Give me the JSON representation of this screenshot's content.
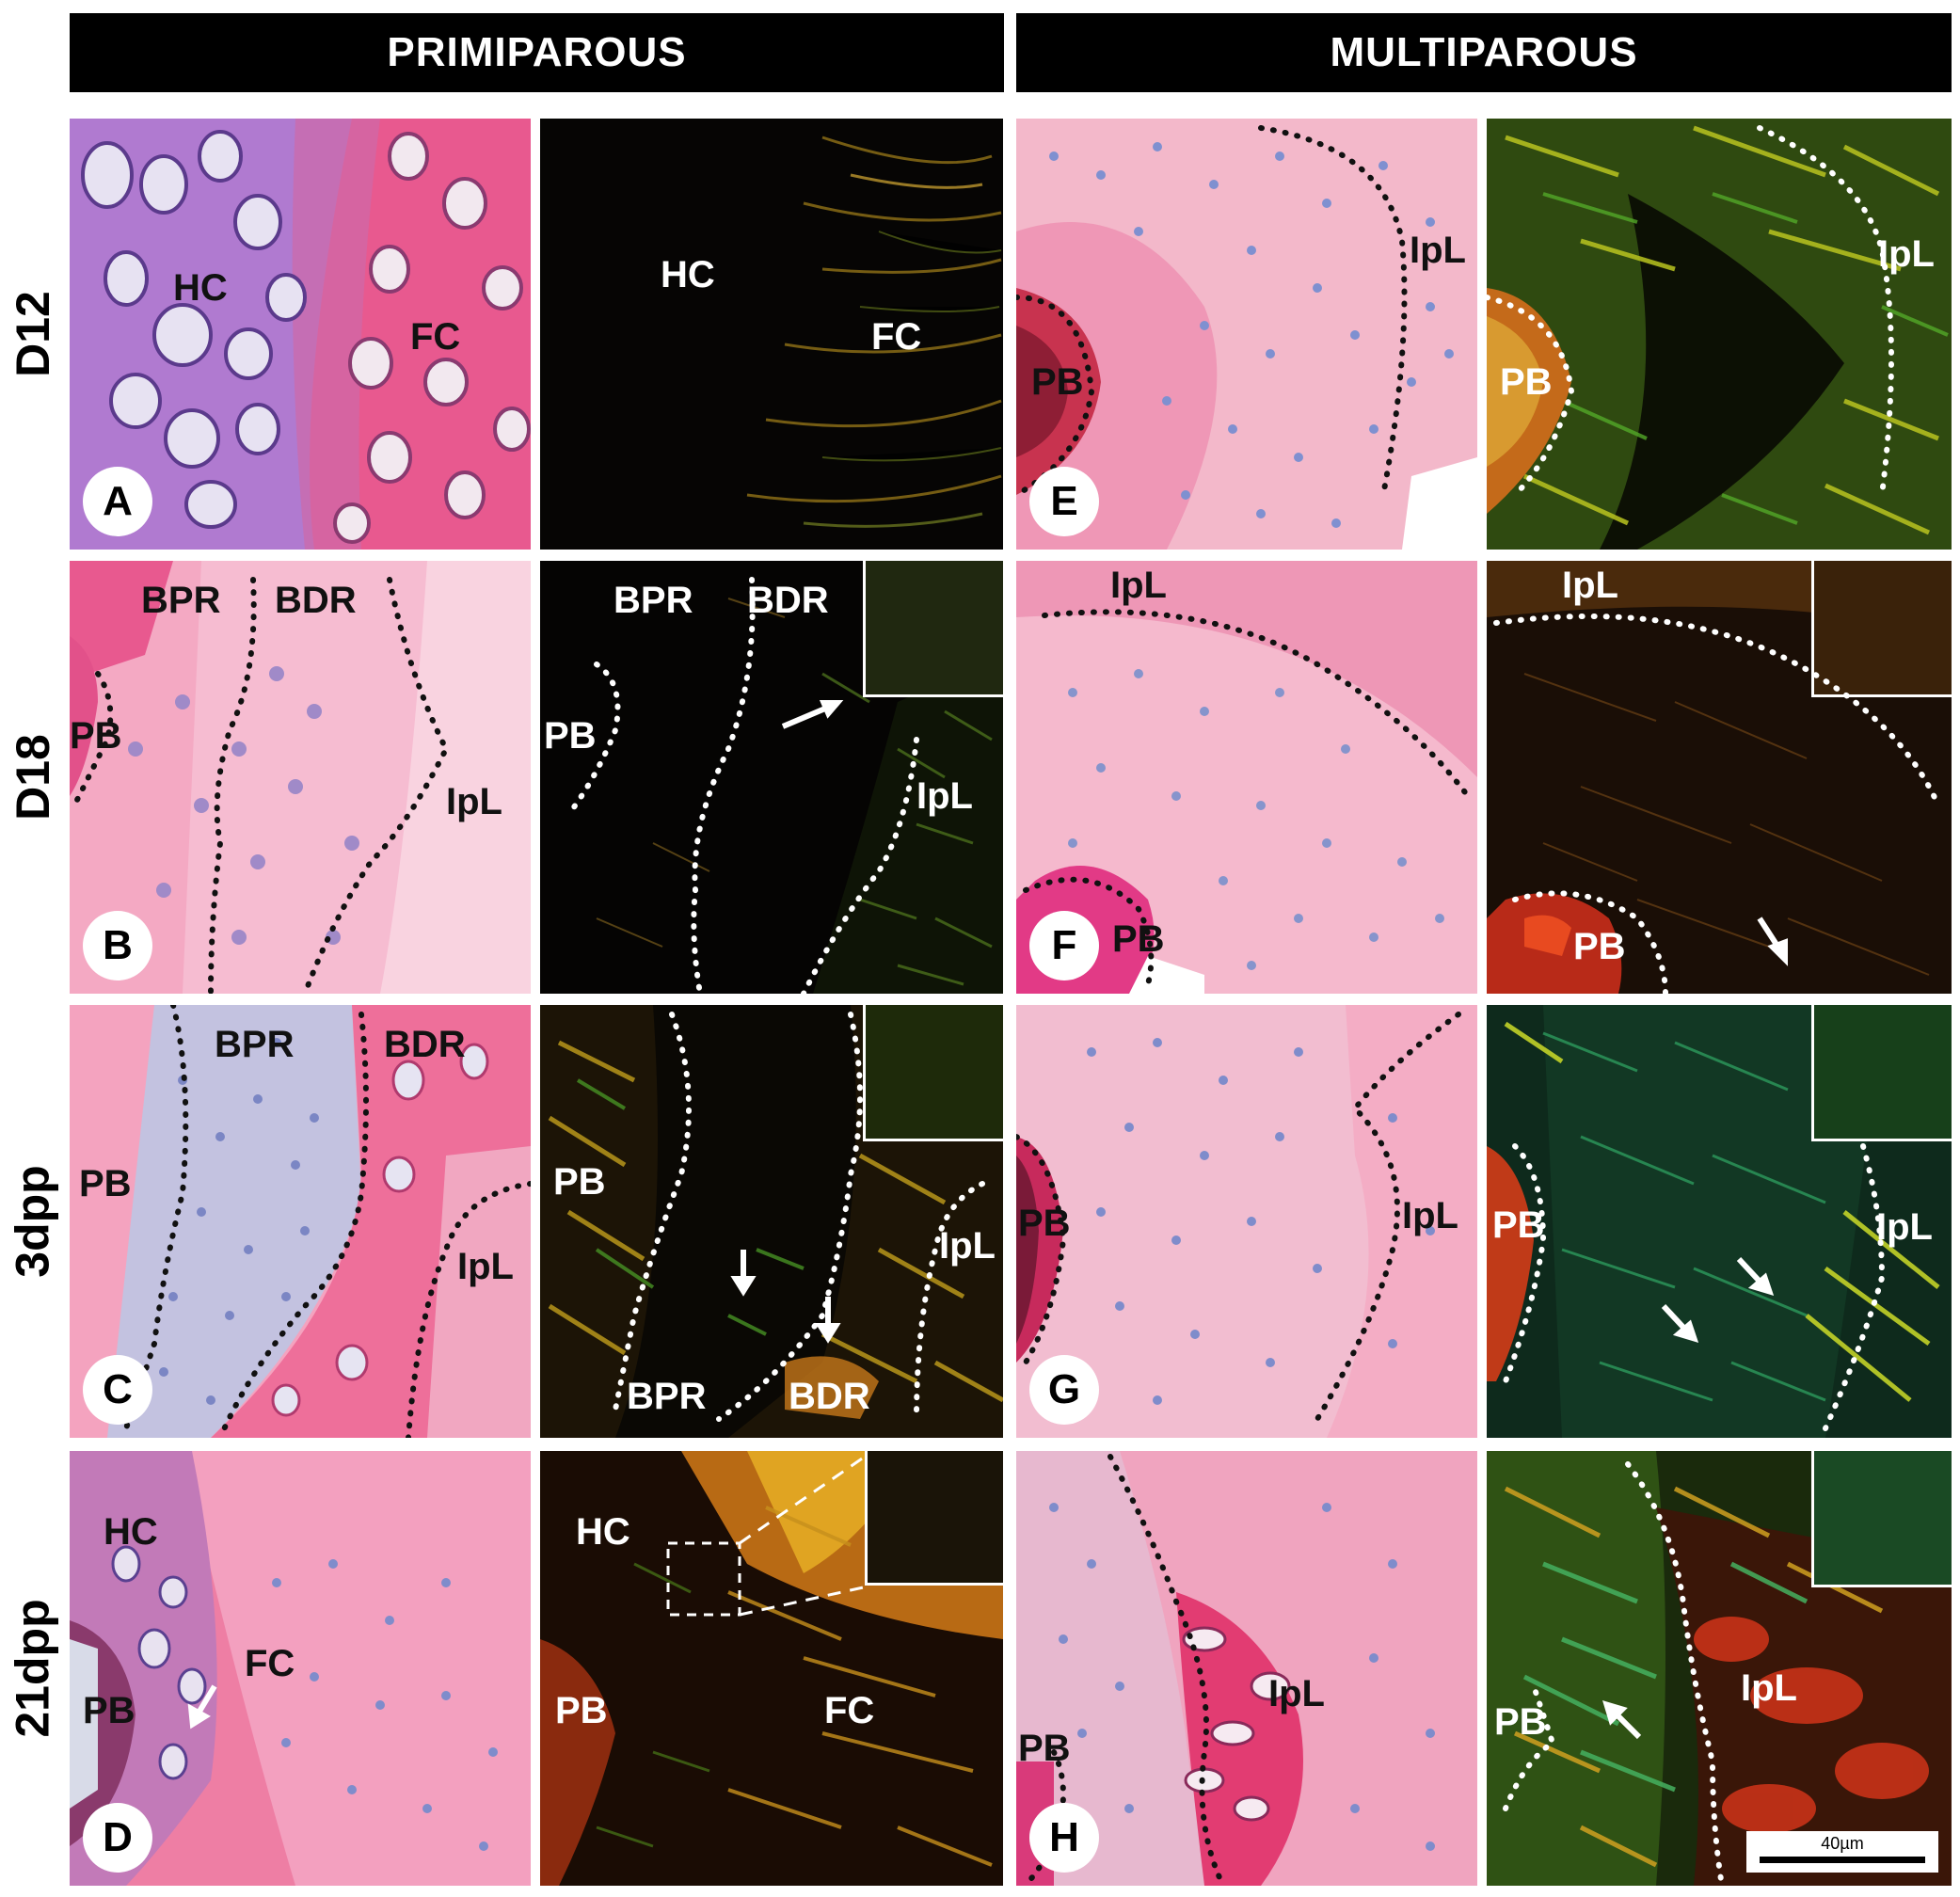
{
  "headers": {
    "left": "PRIMIPAROUS",
    "right": "MULTIPAROUS"
  },
  "rows": [
    "D12",
    "D18",
    "3dpp",
    "21dpp"
  ],
  "colors": {
    "he_pink": "#f2a7c0",
    "he_deep_pink": "#e6427d",
    "he_purple": "#8a5bbd",
    "nuclei_blue": "#7a86c8",
    "polarized_bg": "#0a0804",
    "fiber_yellow": "#c9b020",
    "fiber_green": "#3f9a2a",
    "fiber_red": "#c8321e"
  },
  "panels": {
    "A": {
      "letter": "A",
      "labels": [
        "HC",
        "FC"
      ]
    },
    "A2": {
      "labels": [
        "HC",
        "FC"
      ]
    },
    "E": {
      "letter": "E",
      "labels": [
        "PB",
        "IpL"
      ]
    },
    "E2": {
      "labels": [
        "PB",
        "IpL"
      ]
    },
    "B": {
      "letter": "B",
      "labels": [
        "BPR",
        "BDR",
        "PB",
        "IpL"
      ]
    },
    "B2": {
      "labels": [
        "BPR",
        "BDR",
        "PB",
        "IpL"
      ]
    },
    "F": {
      "letter": "F",
      "labels": [
        "IpL",
        "PB"
      ]
    },
    "F2": {
      "labels": [
        "IpL",
        "PB"
      ]
    },
    "C": {
      "letter": "C",
      "labels": [
        "BPR",
        "BDR",
        "PB",
        "IpL"
      ]
    },
    "C2": {
      "labels": [
        "PB",
        "IpL",
        "BPR",
        "BDR"
      ]
    },
    "G": {
      "letter": "G",
      "labels": [
        "PB",
        "IpL"
      ]
    },
    "G2": {
      "labels": [
        "PB",
        "IpL"
      ]
    },
    "D": {
      "letter": "D",
      "labels": [
        "HC",
        "FC",
        "PB"
      ]
    },
    "D2": {
      "labels": [
        "HC",
        "PB",
        "FC"
      ]
    },
    "H": {
      "letter": "H",
      "labels": [
        "IpL",
        "PB"
      ]
    },
    "H2": {
      "labels": [
        "PB",
        "IpL"
      ]
    }
  },
  "scale_bar": {
    "label": "40µm"
  }
}
